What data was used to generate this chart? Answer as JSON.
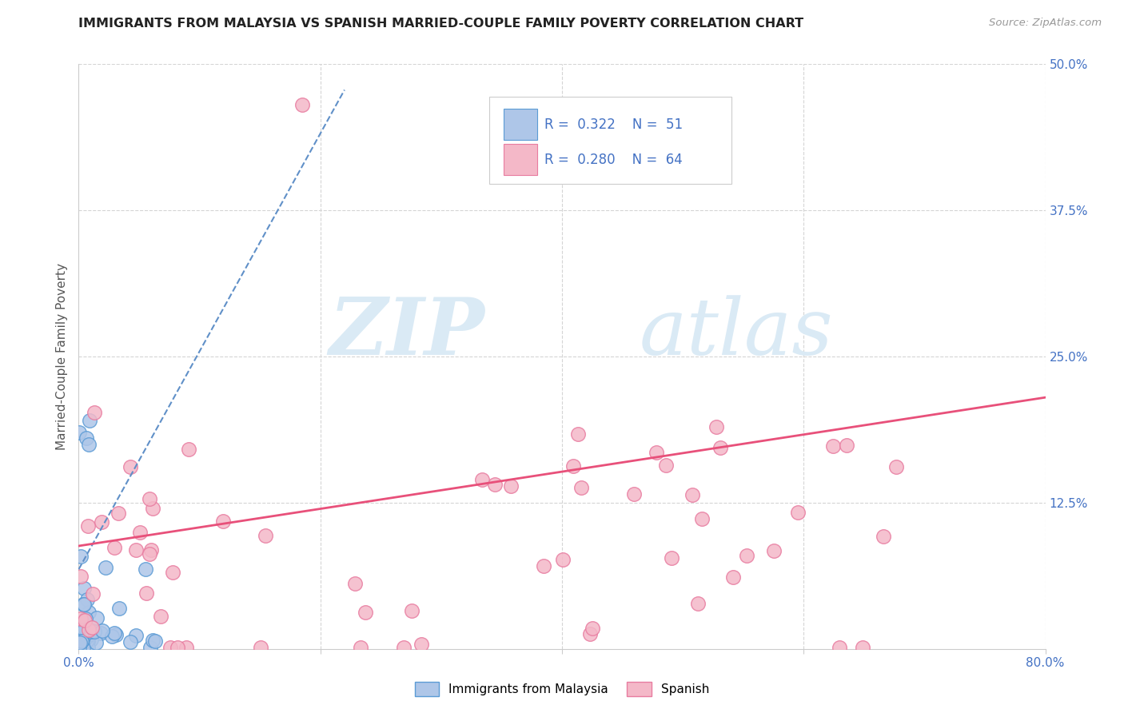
{
  "title": "IMMIGRANTS FROM MALAYSIA VS SPANISH MARRIED-COUPLE FAMILY POVERTY CORRELATION CHART",
  "source": "Source: ZipAtlas.com",
  "ylabel": "Married-Couple Family Poverty",
  "xlim": [
    0.0,
    0.8
  ],
  "ylim": [
    0.0,
    0.5
  ],
  "blue_color": "#aec6e8",
  "blue_edge_color": "#5b9bd5",
  "pink_color": "#f4b8c8",
  "pink_edge_color": "#e87ca0",
  "blue_line_color": "#6090c8",
  "pink_line_color": "#e8507a",
  "watermark_color": "#daeaf5",
  "grid_color": "#d5d5d5",
  "tick_color": "#4472c4",
  "title_color": "#222222",
  "source_color": "#999999",
  "ylabel_color": "#555555",
  "blue_seed": 42,
  "pink_seed": 77,
  "blue_R": 0.322,
  "pink_R": 0.28,
  "n_blue": 51,
  "n_pink": 64,
  "pink_line_x0": 0.0,
  "pink_line_y0": 0.088,
  "pink_line_x1": 0.8,
  "pink_line_y1": 0.215,
  "blue_line_x0": 0.0,
  "blue_line_y0": 0.068,
  "blue_line_x1": 0.22,
  "blue_line_y1": 0.478
}
